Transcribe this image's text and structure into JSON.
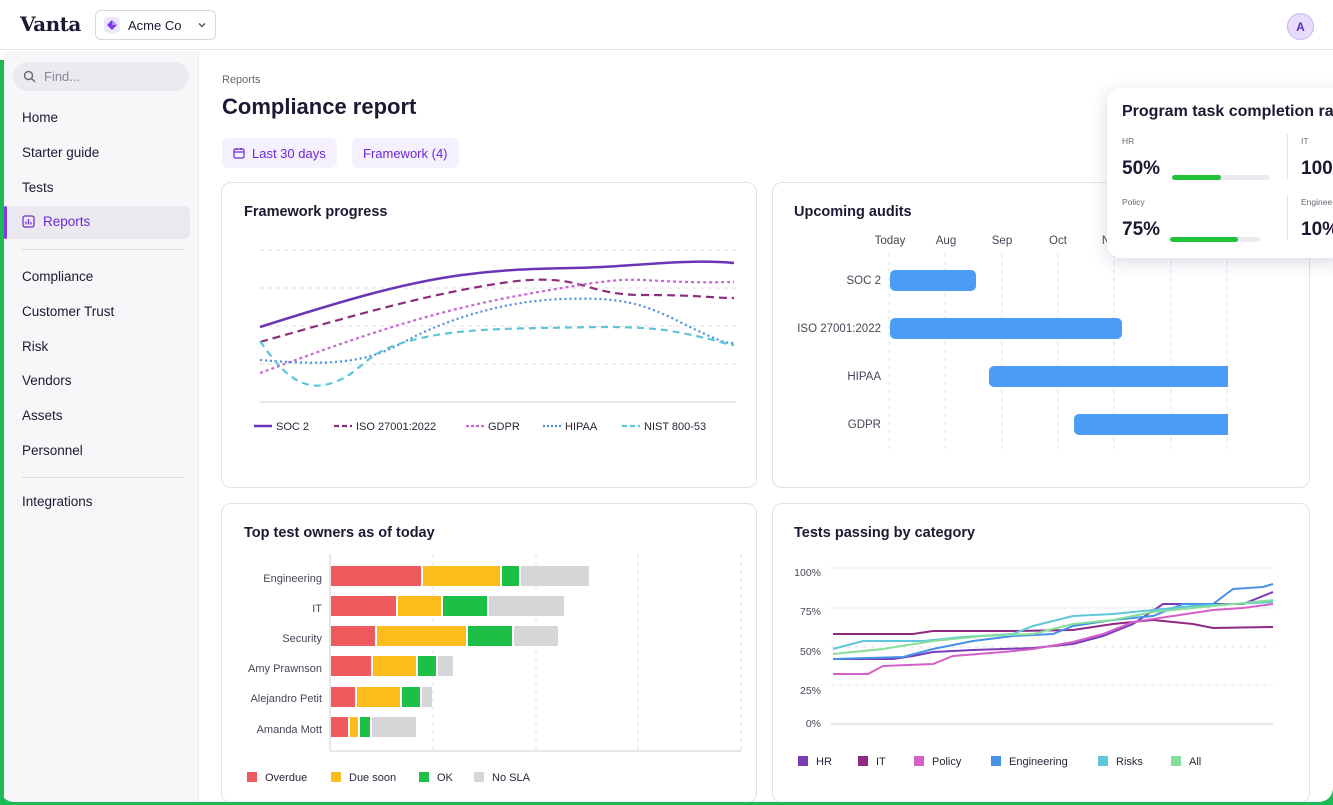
{
  "app": {
    "logo": "Vanta",
    "org": "Acme Co",
    "avatar_initial": "A"
  },
  "sidebar": {
    "search_placeholder": "Find...",
    "items": [
      "Home",
      "Starter guide",
      "Tests",
      "Reports"
    ],
    "active": "Reports",
    "section2": [
      "Compliance",
      "Customer Trust",
      "Risk",
      "Vendors",
      "Assets",
      "Personnel"
    ],
    "section3": [
      "Integrations"
    ]
  },
  "page": {
    "breadcrumb": "Reports",
    "title": "Compliance report",
    "filters": [
      "Last 30 days",
      "Framework (4)"
    ]
  },
  "framework_progress": {
    "title": "Framework progress",
    "legend": [
      "SOC 2",
      "ISO 27001:2022",
      "GDPR",
      "HIPAA",
      "NIST 800-53"
    ],
    "colors": [
      "#6b36b5",
      "#8c2d7e",
      "#c766d4",
      "#4b8fe0",
      "#5cc6d8"
    ]
  },
  "upcoming_audits": {
    "title": "Upcoming audits",
    "columns": [
      "Today",
      "Aug",
      "Sep",
      "Oct",
      "N"
    ],
    "rows": [
      "SOC 2",
      "ISO 27001:2022",
      "HIPAA",
      "GDPR"
    ],
    "bar_color": "#4b9cf5"
  },
  "completion": {
    "title": "Program task completion ra",
    "metrics": [
      {
        "label": "HR",
        "value": "50%",
        "fraction": 0.5
      },
      {
        "label": "IT",
        "value": "100"
      },
      {
        "label": "Policy",
        "value": "75%",
        "fraction": 0.75
      },
      {
        "label": "Enginee",
        "value": "10%"
      }
    ],
    "fill_color": "#22c33c"
  },
  "top_owners": {
    "title": "Top test owners as of today",
    "owners": [
      "Engineering",
      "IT",
      "Security",
      "Amy Prawnson",
      "Alejandro Petit",
      "Amanda Mott"
    ],
    "legend": [
      "Overdue",
      "Due soon",
      "OK",
      "No SLA"
    ],
    "colors": [
      "#ef5a5f",
      "#fbbc1c",
      "#1dbf46",
      "#d6d6d8"
    ]
  },
  "tests_passing": {
    "title": "Tests passing by category",
    "y_ticks": [
      "100%",
      "75%",
      "50%",
      "25%",
      "0%"
    ],
    "legend": [
      "HR",
      "IT",
      "Policy",
      "Engineering",
      "Risks",
      "All"
    ],
    "colors": [
      "#7a3cb9",
      "#8f2a83",
      "#d460c8",
      "#4692e8",
      "#5ec8da",
      "#86de9a"
    ]
  }
}
